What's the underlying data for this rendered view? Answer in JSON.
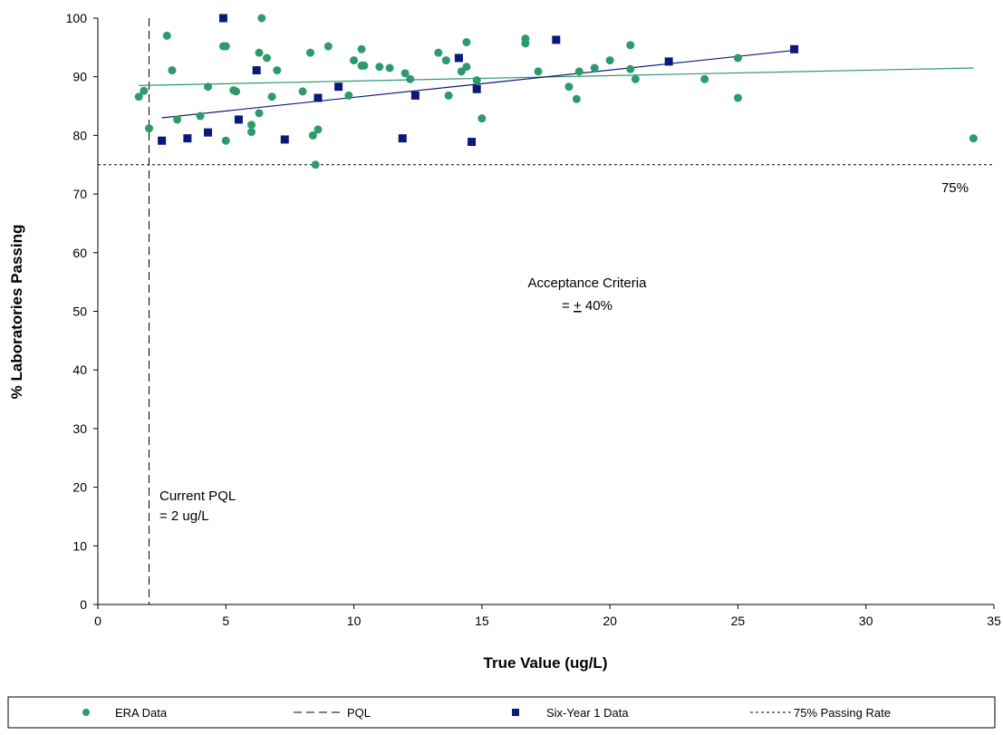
{
  "chart_data": {
    "type": "scatter",
    "xlabel": "True Value (ug/L)",
    "ylabel": "% Laboratories Passing",
    "xlim": [
      0,
      35
    ],
    "ylim": [
      0,
      100
    ],
    "xticks": [
      0,
      5,
      10,
      15,
      20,
      25,
      30,
      35
    ],
    "yticks": [
      0,
      10,
      20,
      30,
      40,
      50,
      60,
      70,
      80,
      90,
      100
    ],
    "grid": false,
    "legend_position": "bottom",
    "series": [
      {
        "name": "ERA Data",
        "marker": "circle",
        "color": "#2e9a6a",
        "points": [
          [
            1.6,
            86.6
          ],
          [
            1.8,
            87.6
          ],
          [
            2.0,
            81.2
          ],
          [
            2.7,
            97.0
          ],
          [
            2.9,
            91.1
          ],
          [
            3.1,
            82.7
          ],
          [
            4.0,
            83.3
          ],
          [
            4.3,
            88.3
          ],
          [
            4.9,
            95.2
          ],
          [
            5.0,
            95.2
          ],
          [
            5.0,
            79.1
          ],
          [
            5.3,
            87.7
          ],
          [
            5.4,
            87.5
          ],
          [
            6.0,
            81.8
          ],
          [
            6.0,
            80.6
          ],
          [
            6.3,
            94.1
          ],
          [
            6.3,
            83.8
          ],
          [
            6.4,
            100.0
          ],
          [
            6.6,
            93.2
          ],
          [
            6.8,
            86.6
          ],
          [
            7.0,
            91.1
          ],
          [
            8.0,
            87.5
          ],
          [
            8.3,
            94.1
          ],
          [
            8.4,
            80.0
          ],
          [
            8.5,
            75.0
          ],
          [
            8.6,
            81.0
          ],
          [
            9.0,
            95.2
          ],
          [
            9.8,
            86.8
          ],
          [
            10.0,
            92.8
          ],
          [
            10.3,
            94.7
          ],
          [
            10.3,
            91.9
          ],
          [
            10.4,
            91.9
          ],
          [
            11.0,
            91.7
          ],
          [
            11.4,
            91.5
          ],
          [
            12.0,
            90.6
          ],
          [
            12.2,
            89.6
          ],
          [
            13.3,
            94.1
          ],
          [
            13.6,
            92.8
          ],
          [
            13.7,
            86.8
          ],
          [
            14.2,
            90.9
          ],
          [
            14.4,
            95.9
          ],
          [
            14.4,
            91.7
          ],
          [
            14.8,
            89.4
          ],
          [
            15.0,
            82.9
          ],
          [
            16.7,
            96.5
          ],
          [
            16.7,
            95.7
          ],
          [
            17.2,
            90.9
          ],
          [
            18.4,
            88.3
          ],
          [
            18.7,
            86.2
          ],
          [
            18.8,
            90.9
          ],
          [
            19.4,
            91.5
          ],
          [
            20.0,
            92.8
          ],
          [
            20.8,
            95.4
          ],
          [
            20.8,
            91.3
          ],
          [
            21.0,
            89.6
          ],
          [
            23.7,
            89.6
          ],
          [
            25.0,
            93.2
          ],
          [
            25.0,
            86.4
          ],
          [
            34.2,
            79.5
          ]
        ]
      },
      {
        "name": "Six-Year 1 Data",
        "marker": "square",
        "color": "#0b1a7a",
        "points": [
          [
            2.5,
            79.1
          ],
          [
            3.5,
            79.5
          ],
          [
            4.3,
            80.5
          ],
          [
            4.9,
            100.0
          ],
          [
            5.5,
            82.7
          ],
          [
            6.2,
            91.1
          ],
          [
            7.3,
            79.3
          ],
          [
            8.6,
            86.4
          ],
          [
            9.4,
            88.3
          ],
          [
            11.9,
            79.5
          ],
          [
            12.4,
            86.8
          ],
          [
            14.1,
            93.2
          ],
          [
            14.6,
            78.9
          ],
          [
            14.8,
            87.9
          ],
          [
            17.9,
            96.3
          ],
          [
            22.3,
            92.6
          ],
          [
            27.2,
            94.7
          ]
        ]
      }
    ],
    "trendlines": [
      {
        "series": "ERA Data",
        "color": "#2e9a6a",
        "x": [
          1.6,
          34.2
        ],
        "y": [
          88.5,
          91.5
        ]
      },
      {
        "series": "Six-Year 1 Data",
        "color": "#0b1a7a",
        "x": [
          2.5,
          27.2
        ],
        "y": [
          83.0,
          94.5
        ]
      }
    ],
    "reference_lines": [
      {
        "name": "PQL",
        "orientation": "vertical",
        "value": 2,
        "style": "long-dash"
      },
      {
        "name": "75% Passing Rate",
        "orientation": "horizontal",
        "value": 75,
        "style": "short-dash"
      }
    ],
    "annotations": {
      "pql_line1": "Current PQL",
      "pql_line2": "= 2 ug/L",
      "criteria_line1": "Acceptance Criteria",
      "criteria_line2_prefix": "= ",
      "criteria_line2_pm": "+",
      "criteria_line2_suffix": " 40%",
      "rate_label": "75%"
    },
    "legend": [
      {
        "label": "ERA Data",
        "symbol": "circle"
      },
      {
        "label": "PQL",
        "symbol": "long-dash"
      },
      {
        "label": "Six-Year 1 Data",
        "symbol": "square"
      },
      {
        "label": "75% Passing Rate",
        "symbol": "short-dash"
      }
    ]
  }
}
